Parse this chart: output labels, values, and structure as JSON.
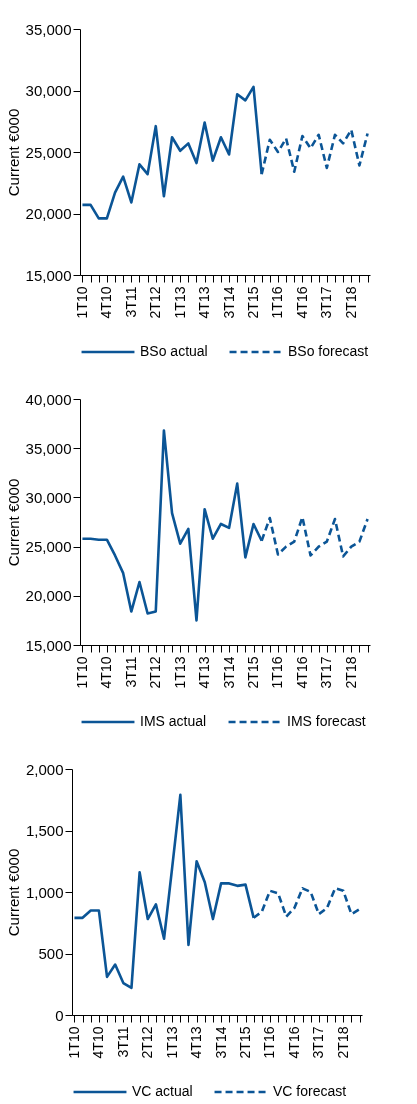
{
  "chart_data": [
    {
      "type": "line",
      "ylabel": "Current €000",
      "legend": "bottom",
      "ylim": [
        15000,
        35000
      ],
      "yticks": [
        {
          "value": 15000,
          "label": "15,000"
        },
        {
          "value": 20000,
          "label": "20,000"
        },
        {
          "value": 25000,
          "label": "25,000"
        },
        {
          "value": 30000,
          "label": "30,000"
        },
        {
          "value": 35000,
          "label": "35,000"
        }
      ],
      "categories": [
        "1T10",
        null,
        null,
        "4T10",
        null,
        null,
        "3T11",
        null,
        null,
        "2T12",
        null,
        null,
        "1T13",
        null,
        null,
        "4T13",
        null,
        null,
        "3T14",
        null,
        null,
        "2T15",
        null,
        null,
        "1T16",
        null,
        null,
        "4T16",
        null,
        null,
        "3T17",
        null,
        null,
        "2T18",
        null,
        null
      ],
      "series": [
        {
          "name": "BSo actual",
          "color": "#0b5596",
          "line_style": "solid",
          "values": [
            20700,
            20700,
            19600,
            19600,
            21700,
            23000,
            20900,
            24000,
            23200,
            27100,
            21400,
            26200,
            25100,
            25700,
            24100,
            27400,
            24300,
            26200,
            24800,
            29700,
            29200,
            30300,
            23200,
            null,
            null,
            null,
            null,
            null,
            null,
            null,
            null,
            null,
            null,
            null,
            null,
            null
          ]
        },
        {
          "name": "BSo forecast",
          "color": "#0b5596",
          "line_style": "dashed",
          "values": [
            null,
            null,
            null,
            null,
            null,
            null,
            null,
            null,
            null,
            null,
            null,
            null,
            null,
            null,
            null,
            null,
            null,
            null,
            null,
            null,
            null,
            null,
            23200,
            26000,
            25000,
            26100,
            23400,
            26300,
            25300,
            26400,
            23700,
            26400,
            25700,
            26800,
            23900,
            26500
          ]
        }
      ]
    },
    {
      "type": "line",
      "ylabel": "Current €000",
      "legend": "bottom",
      "ylim": [
        15000,
        40000
      ],
      "yticks": [
        {
          "value": 15000,
          "label": "15,000"
        },
        {
          "value": 20000,
          "label": "20,000"
        },
        {
          "value": 25000,
          "label": "25,000"
        },
        {
          "value": 30000,
          "label": "30,000"
        },
        {
          "value": 35000,
          "label": "35,000"
        },
        {
          "value": 40000,
          "label": "40,000"
        }
      ],
      "categories": [
        "1T10",
        null,
        null,
        "4T10",
        null,
        null,
        "3T11",
        null,
        null,
        "2T12",
        null,
        null,
        "1T13",
        null,
        null,
        "4T13",
        null,
        null,
        "3T14",
        null,
        null,
        "2T15",
        null,
        null,
        "1T16",
        null,
        null,
        "4T16",
        null,
        null,
        "3T17",
        null,
        null,
        "2T18",
        null,
        null
      ],
      "series": [
        {
          "name": "IMS actual",
          "color": "#0b5596",
          "line_style": "solid",
          "values": [
            25800,
            25800,
            25700,
            25700,
            24100,
            22300,
            18400,
            21400,
            18200,
            18400,
            36800,
            28400,
            25300,
            26800,
            17500,
            28800,
            25800,
            27300,
            26900,
            31400,
            23900,
            27300,
            25600,
            null,
            null,
            null,
            null,
            null,
            null,
            null,
            null,
            null,
            null,
            null,
            null,
            null
          ]
        },
        {
          "name": "IMS forecast",
          "color": "#0b5596",
          "line_style": "dashed",
          "values": [
            null,
            null,
            null,
            null,
            null,
            null,
            null,
            null,
            null,
            null,
            null,
            null,
            null,
            null,
            null,
            null,
            null,
            null,
            null,
            null,
            null,
            null,
            25600,
            27900,
            24200,
            25000,
            25500,
            28000,
            24100,
            25000,
            25500,
            27800,
            24000,
            25000,
            25500,
            27800
          ]
        }
      ]
    },
    {
      "type": "line",
      "ylabel": "Current €000",
      "legend": "bottom",
      "ylim": [
        0,
        2000
      ],
      "yticks": [
        0,
        500,
        {
          "value": 1000,
          "label": "1,000"
        },
        {
          "value": 1500,
          "label": "1,500"
        },
        {
          "value": 2000,
          "label": "2,000"
        }
      ],
      "categories": [
        "1T10",
        null,
        null,
        "4T10",
        null,
        null,
        "3T11",
        null,
        null,
        "2T12",
        null,
        null,
        "1T13",
        null,
        null,
        "4T13",
        null,
        null,
        "3T14",
        null,
        null,
        "2T15",
        null,
        null,
        "1T16",
        null,
        null,
        "4T16",
        null,
        null,
        "3T17",
        null,
        null,
        "2T18",
        null,
        null
      ],
      "series": [
        {
          "name": "VC actual",
          "color": "#0b5596",
          "line_style": "solid",
          "values": [
            790,
            790,
            850,
            850,
            310,
            410,
            260,
            220,
            1160,
            780,
            900,
            620,
            1200,
            1790,
            570,
            1250,
            1080,
            780,
            1070,
            1070,
            1050,
            1060,
            790,
            null,
            null,
            null,
            null,
            null,
            null,
            null,
            null,
            null,
            null,
            null,
            null,
            null
          ]
        },
        {
          "name": "VC forecast",
          "color": "#0b5596",
          "line_style": "dashed",
          "values": [
            null,
            null,
            null,
            null,
            null,
            null,
            null,
            null,
            null,
            null,
            null,
            null,
            null,
            null,
            null,
            null,
            null,
            null,
            null,
            null,
            null,
            null,
            790,
            840,
            1010,
            990,
            800,
            870,
            1030,
            1000,
            820,
            870,
            1030,
            1010,
            820,
            860
          ]
        }
      ]
    }
  ]
}
